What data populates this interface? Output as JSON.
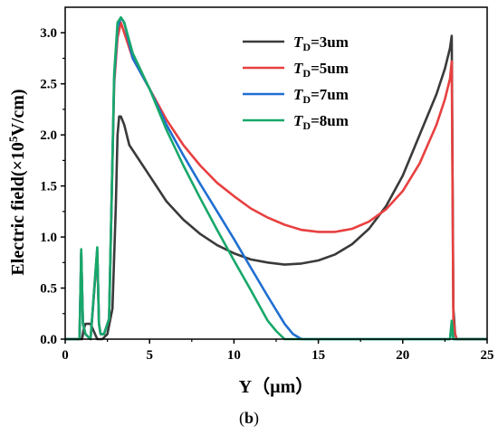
{
  "caption": {
    "prefix": "(",
    "letter": "b",
    "suffix": ")"
  },
  "chart_data": {
    "type": "line",
    "xlabel": "Y（µm）",
    "ylabel_parts": {
      "main": "Electric field(×10",
      "sup": "5",
      "tail": "V/cm)"
    },
    "xlim": [
      0,
      25
    ],
    "ylim": [
      0,
      3.25
    ],
    "xticks": [
      0,
      5,
      10,
      15,
      20,
      25
    ],
    "yticks": [
      0.0,
      0.5,
      1.0,
      1.5,
      2.0,
      2.5,
      3.0
    ],
    "ytick_labels": [
      "0.0",
      "0.5",
      "1.0",
      "1.5",
      "2.0",
      "2.5",
      "3.0"
    ],
    "grid": false,
    "legend_position": "top-right",
    "series": [
      {
        "name": "TD=3um",
        "legend_label": {
          "italic": "T",
          "sub": "D",
          "rest": "=3um"
        },
        "color": "#3a3a3a",
        "x": [
          0,
          1,
          1.1,
          1.2,
          1.5,
          1.9,
          2.2,
          2.5,
          2.8,
          3.0,
          3.1,
          3.2,
          3.3,
          3.5,
          3.8,
          4.0,
          5,
          6,
          7,
          8,
          9,
          10,
          11,
          12,
          13,
          14,
          15,
          16,
          17,
          18,
          19,
          20,
          21,
          22,
          22.5,
          22.8,
          22.9,
          23.0,
          23.1,
          23.2,
          25
        ],
        "y": [
          0,
          0,
          0.1,
          0.15,
          0.15,
          0,
          0,
          0.05,
          0.3,
          1.3,
          2.0,
          2.18,
          2.18,
          2.1,
          1.9,
          1.85,
          1.6,
          1.35,
          1.17,
          1.03,
          0.92,
          0.84,
          0.78,
          0.75,
          0.73,
          0.74,
          0.77,
          0.83,
          0.93,
          1.08,
          1.3,
          1.6,
          2.0,
          2.4,
          2.65,
          2.85,
          2.97,
          0.3,
          0.05,
          0,
          0
        ]
      },
      {
        "name": "TD=5um",
        "legend_label": {
          "italic": "T",
          "sub": "D",
          "rest": "=5um"
        },
        "color": "#e84040",
        "x": [
          0,
          0.85,
          0.95,
          1.05,
          1.2,
          1.5,
          1.9,
          2.0,
          2.1,
          2.3,
          2.6,
          2.9,
          3.1,
          3.3,
          3.5,
          4,
          5,
          6,
          7,
          8,
          9,
          10,
          11,
          12,
          13,
          14,
          15,
          16,
          17,
          18,
          19,
          20,
          21,
          22,
          22.5,
          22.8,
          22.9,
          23.0,
          23.1,
          23.2,
          25
        ],
        "y": [
          0,
          0,
          0.85,
          0.15,
          0.05,
          0,
          0.85,
          0.15,
          0.05,
          0.05,
          0.2,
          2.5,
          2.95,
          3.1,
          3.0,
          2.75,
          2.45,
          2.15,
          1.9,
          1.7,
          1.53,
          1.4,
          1.28,
          1.19,
          1.12,
          1.07,
          1.05,
          1.05,
          1.08,
          1.15,
          1.27,
          1.45,
          1.72,
          2.1,
          2.35,
          2.55,
          2.72,
          0.2,
          0.05,
          0,
          0
        ]
      },
      {
        "name": "TD=7um",
        "legend_label": {
          "italic": "T",
          "sub": "D",
          "rest": "=7um"
        },
        "color": "#1f6fd1",
        "x": [
          0,
          0.85,
          0.95,
          1.05,
          1.2,
          1.5,
          1.9,
          2.0,
          2.1,
          2.3,
          2.6,
          2.9,
          3.1,
          3.3,
          3.5,
          4,
          5,
          6,
          7,
          8,
          9,
          10,
          11,
          12,
          13,
          13.5,
          14,
          22.8,
          22.9,
          23.0,
          25
        ],
        "y": [
          0,
          0,
          0.85,
          0.15,
          0.05,
          0,
          0.88,
          0.15,
          0.05,
          0.05,
          0.2,
          2.55,
          3.05,
          3.15,
          3.1,
          2.75,
          2.45,
          2.1,
          1.8,
          1.52,
          1.25,
          0.98,
          0.7,
          0.42,
          0.15,
          0.05,
          0,
          0,
          0.15,
          0,
          0
        ]
      },
      {
        "name": "TD=8um",
        "legend_label": {
          "italic": "T",
          "sub": "D",
          "rest": "=8um"
        },
        "color": "#18a86a",
        "x": [
          0,
          0.85,
          0.95,
          1.05,
          1.2,
          1.5,
          1.9,
          2.0,
          2.1,
          2.3,
          2.6,
          2.9,
          3.1,
          3.3,
          3.5,
          4,
          5,
          6,
          7,
          8,
          9,
          10,
          11,
          12,
          12.5,
          13,
          22.8,
          22.9,
          23.0,
          25
        ],
        "y": [
          0,
          0,
          0.88,
          0.15,
          0.05,
          0,
          0.9,
          0.15,
          0.05,
          0.05,
          0.2,
          2.6,
          3.1,
          3.15,
          3.1,
          2.8,
          2.45,
          2.05,
          1.7,
          1.38,
          1.07,
          0.77,
          0.48,
          0.18,
          0.08,
          0,
          0,
          0.18,
          0,
          0
        ]
      }
    ]
  }
}
